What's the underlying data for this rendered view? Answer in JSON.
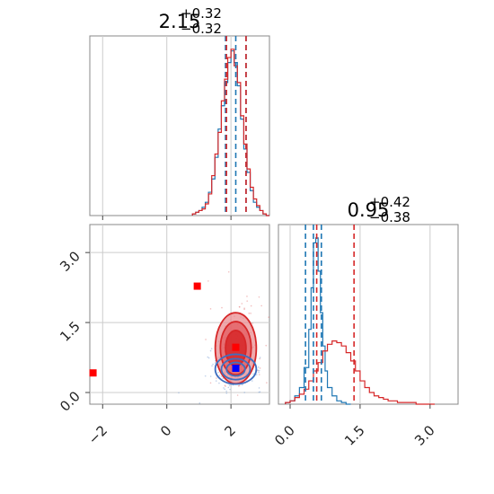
{
  "chart_data": [
    {
      "panel": "top-left",
      "type": "histogram",
      "title_value": "2.15",
      "title_plus": "+0.32",
      "title_minus": "−0.32",
      "xlim": [
        -2.4,
        3.2
      ],
      "grid": true,
      "series": [
        {
          "color": "#1f77b4",
          "bins_x": [
            0.8,
            0.9,
            1.0,
            1.1,
            1.2,
            1.3,
            1.4,
            1.5,
            1.6,
            1.7,
            1.8,
            1.9,
            2.0,
            2.1,
            2.2,
            2.3,
            2.4,
            2.5,
            2.6,
            2.7,
            2.8,
            2.9,
            3.0,
            3.1
          ],
          "heights": [
            0.01,
            0.02,
            0.03,
            0.05,
            0.08,
            0.14,
            0.22,
            0.35,
            0.52,
            0.66,
            0.8,
            0.92,
            0.99,
            0.92,
            0.78,
            0.58,
            0.4,
            0.26,
            0.15,
            0.08,
            0.05,
            0.03,
            0.01,
            0.0
          ]
        },
        {
          "color": "#d62728",
          "bins_x": [
            0.8,
            0.9,
            1.0,
            1.1,
            1.2,
            1.3,
            1.4,
            1.5,
            1.6,
            1.7,
            1.8,
            1.9,
            2.0,
            2.1,
            2.2,
            2.3,
            2.4,
            2.5,
            2.6,
            2.7,
            2.8,
            2.9,
            3.0,
            3.1
          ],
          "heights": [
            0.01,
            0.02,
            0.03,
            0.04,
            0.07,
            0.13,
            0.24,
            0.37,
            0.5,
            0.69,
            0.82,
            0.95,
            1.0,
            0.9,
            0.8,
            0.6,
            0.43,
            0.28,
            0.17,
            0.1,
            0.06,
            0.03,
            0.01,
            0.0
          ]
        }
      ],
      "quantile_lines": [
        {
          "x": 1.83,
          "color": "#1f77b4"
        },
        {
          "x": 2.15,
          "color": "#1f77b4"
        },
        {
          "x": 2.47,
          "color": "#1f77b4"
        },
        {
          "x": 1.86,
          "color": "#d62728"
        },
        {
          "x": 2.47,
          "color": "#d62728"
        }
      ]
    },
    {
      "panel": "bottom-left",
      "type": "contour",
      "xlim": [
        -2.4,
        3.2
      ],
      "ylim": [
        -0.25,
        3.6
      ],
      "xticks": [
        "−2",
        "0",
        "2"
      ],
      "xtick_values": [
        -2,
        0,
        2
      ],
      "yticks": [
        "0.0",
        "1.5",
        "3.0"
      ],
      "ytick_values": [
        0.0,
        1.5,
        3.0
      ],
      "grid": true,
      "red_center": [
        2.15,
        0.95
      ],
      "red_sigma": [
        0.32,
        0.38
      ],
      "blue_center": [
        2.15,
        0.5
      ],
      "blue_sigma": [
        0.32,
        0.16
      ],
      "markers": [
        {
          "x": 0.95,
          "y": 2.28,
          "color": "#ff0000"
        },
        {
          "x": -2.3,
          "y": 0.42,
          "color": "#ff0000"
        },
        {
          "x": 2.15,
          "y": 0.97,
          "color": "#ff0000"
        },
        {
          "x": 2.15,
          "y": 0.52,
          "color": "#0000ff"
        }
      ]
    },
    {
      "panel": "bottom-right",
      "type": "histogram",
      "title_value": "0.95",
      "title_plus": "+0.42",
      "title_minus": "−0.38",
      "xlim": [
        -0.25,
        3.6
      ],
      "xticks": [
        "0.0",
        "1.5",
        "3.0"
      ],
      "xtick_values": [
        0.0,
        1.5,
        3.0
      ],
      "grid": true,
      "series": [
        {
          "color": "#1f77b4",
          "bins_x": [
            -0.1,
            0.0,
            0.1,
            0.2,
            0.3,
            0.4,
            0.45,
            0.5,
            0.55,
            0.6,
            0.65,
            0.7,
            0.75,
            0.8,
            0.9,
            1.0,
            1.1,
            1.2
          ],
          "heights": [
            0.01,
            0.02,
            0.05,
            0.1,
            0.22,
            0.45,
            0.7,
            0.97,
            1.0,
            0.8,
            0.55,
            0.35,
            0.2,
            0.1,
            0.05,
            0.02,
            0.01,
            0.0
          ]
        },
        {
          "color": "#d62728",
          "bins_x": [
            -0.1,
            0.0,
            0.1,
            0.2,
            0.3,
            0.4,
            0.5,
            0.6,
            0.7,
            0.8,
            0.9,
            1.0,
            1.1,
            1.2,
            1.3,
            1.4,
            1.5,
            1.6,
            1.7,
            1.8,
            1.9,
            2.0,
            2.1,
            2.2,
            2.3,
            2.5,
            2.7,
            2.9
          ],
          "heights": [
            0.01,
            0.02,
            0.04,
            0.06,
            0.09,
            0.14,
            0.2,
            0.25,
            0.32,
            0.36,
            0.38,
            0.37,
            0.35,
            0.31,
            0.26,
            0.2,
            0.14,
            0.1,
            0.07,
            0.05,
            0.04,
            0.03,
            0.02,
            0.02,
            0.01,
            0.01,
            0.0,
            0.0
          ]
        }
      ],
      "quantile_lines": [
        {
          "x": 0.33,
          "color": "#1f77b4"
        },
        {
          "x": 0.5,
          "color": "#1f77b4"
        },
        {
          "x": 0.67,
          "color": "#1f77b4"
        },
        {
          "x": 0.57,
          "color": "#d62728"
        },
        {
          "x": 1.37,
          "color": "#d62728"
        }
      ]
    }
  ]
}
